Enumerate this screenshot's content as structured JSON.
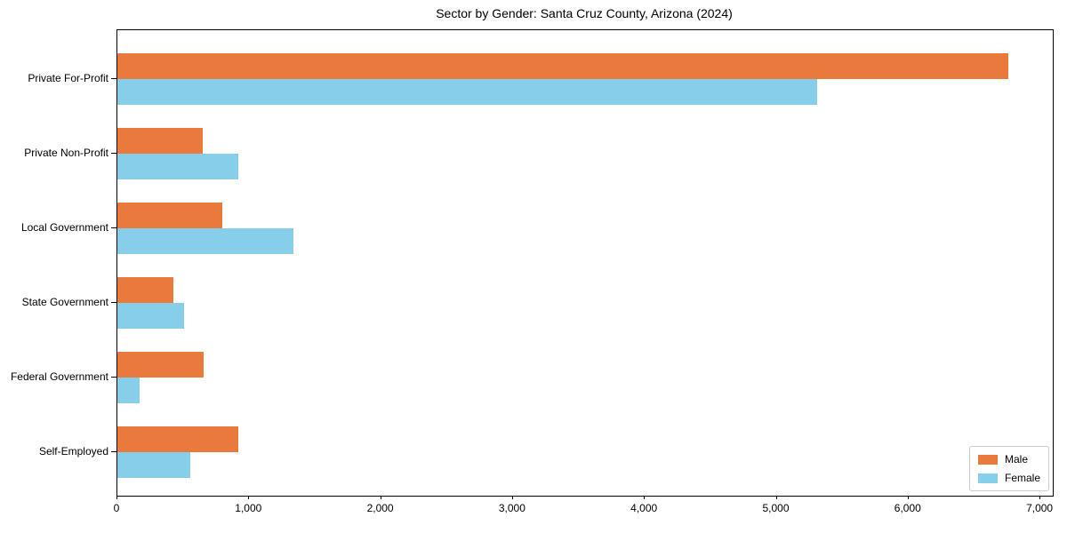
{
  "title": "Sector by Gender: Santa Cruz County, Arizona (2024)",
  "colors": {
    "male": "#e97a3c",
    "female": "#87ceeb",
    "spine": "#000000",
    "legend_border": "#cccccc",
    "background": "#ffffff"
  },
  "legend": {
    "position": "lower right",
    "entries": [
      {
        "label": "Male",
        "color": "#e97a3c"
      },
      {
        "label": "Female",
        "color": "#87ceeb"
      }
    ]
  },
  "chart_data": {
    "type": "bar",
    "orientation": "horizontal",
    "title": "Sector by Gender: Santa Cruz County, Arizona (2024)",
    "xlabel": "",
    "ylabel": "",
    "categories": [
      "Private For-Profit",
      "Private Non-Profit",
      "Local Government",
      "State Government",
      "Federal Government",
      "Self-Employed"
    ],
    "series": [
      {
        "name": "Male",
        "color": "#e97a3c",
        "values": [
          6755,
          650,
          795,
          425,
          655,
          920
        ]
      },
      {
        "name": "Female",
        "color": "#87ceeb",
        "values": [
          5310,
          920,
          1335,
          505,
          165,
          550
        ]
      }
    ],
    "xlim": [
      0,
      7094
    ],
    "x_ticks": [
      0,
      1000,
      2000,
      3000,
      4000,
      5000,
      6000,
      7000
    ],
    "x_tick_labels": [
      "0",
      "1,000",
      "2,000",
      "3,000",
      "4,000",
      "5,000",
      "6,000",
      "7,000"
    ],
    "grid": false,
    "legend_position": "lower right"
  }
}
